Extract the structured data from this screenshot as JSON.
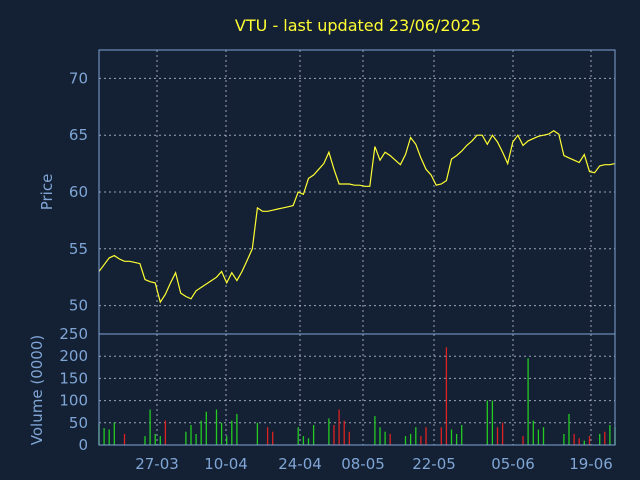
{
  "chart_data": {
    "type": "line",
    "title": "VTU - last updated 23/06/2025",
    "colors": {
      "background": "#142033",
      "axis": "#7fa6d6",
      "price_line": "#ffff33",
      "volume_up": "#22cc22",
      "volume_down": "#dd2222",
      "title": "#ffff33"
    },
    "x_tick_labels": [
      "27-03",
      "10-04",
      "24-04",
      "08-05",
      "22-05",
      "05-06",
      "19-06"
    ],
    "price_panel": {
      "ylabel": "Price",
      "ylim": [
        47.5,
        72.5
      ],
      "yticks": [
        50,
        55,
        60,
        65,
        70
      ],
      "grid": true,
      "values": [
        53.0,
        53.6,
        54.2,
        54.4,
        54.1,
        53.9,
        53.9,
        53.8,
        53.7,
        52.3,
        52.1,
        52.0,
        50.3,
        51.0,
        52.0,
        52.9,
        51.1,
        50.8,
        50.6,
        51.3,
        51.6,
        51.9,
        52.2,
        52.5,
        53.0,
        52.0,
        52.9,
        52.2,
        53.0,
        54.0,
        55.0,
        58.6,
        58.3,
        58.3,
        58.4,
        58.5,
        58.6,
        58.7,
        58.8,
        60.0,
        59.8,
        61.2,
        61.5,
        62.0,
        62.5,
        63.5,
        62.0,
        60.7,
        60.7,
        60.7,
        60.6,
        60.6,
        60.5,
        60.5,
        64.0,
        62.8,
        63.5,
        63.2,
        62.8,
        62.4,
        63.3,
        64.8,
        64.2,
        63.0,
        62.0,
        61.5,
        60.6,
        60.7,
        61.0,
        62.9,
        63.2,
        63.6,
        64.1,
        64.5,
        65.0,
        65.0,
        64.2,
        65.0,
        64.4,
        63.5,
        62.5,
        64.4,
        65.0,
        64.1,
        64.5,
        64.7,
        64.9,
        65.0,
        65.1,
        65.4,
        65.1,
        63.2,
        63.0,
        62.8,
        62.6,
        63.3,
        61.8,
        61.7,
        62.3,
        62.4,
        62.4,
        62.5
      ]
    },
    "volume_panel": {
      "ylabel": "Volume (0000)",
      "ylim": [
        0,
        250
      ],
      "yticks": [
        0,
        50,
        100,
        150,
        200,
        250
      ],
      "grid": true,
      "values": [
        48,
        38,
        35,
        50,
        0,
        25,
        0,
        0,
        0,
        20,
        80,
        25,
        20,
        55,
        0,
        0,
        0,
        30,
        45,
        25,
        55,
        75,
        0,
        80,
        50,
        20,
        55,
        70,
        0,
        0,
        0,
        50,
        0,
        40,
        30,
        0,
        0,
        0,
        0,
        40,
        20,
        15,
        45,
        0,
        0,
        60,
        45,
        80,
        55,
        30,
        0,
        0,
        0,
        0,
        65,
        40,
        30,
        25,
        0,
        0,
        20,
        25,
        40,
        20,
        40,
        0,
        0,
        40,
        220,
        35,
        25,
        45,
        0,
        0,
        0,
        0,
        100,
        100,
        40,
        50,
        0,
        0,
        0,
        20,
        195,
        55,
        35,
        40,
        0,
        0,
        0,
        25,
        70,
        25,
        15,
        10,
        20,
        0,
        25,
        30,
        45,
        40
      ],
      "direction": [
        "up",
        "up",
        "up",
        "up",
        "up",
        "down",
        "up",
        "up",
        "up",
        "up",
        "up",
        "up",
        "up",
        "down",
        "up",
        "up",
        "up",
        "up",
        "up",
        "up",
        "up",
        "up",
        "up",
        "up",
        "up",
        "up",
        "up",
        "up",
        "up",
        "up",
        "up",
        "up",
        "up",
        "down",
        "down",
        "up",
        "up",
        "up",
        "up",
        "up",
        "up",
        "up",
        "up",
        "up",
        "up",
        "up",
        "down",
        "down",
        "down",
        "down",
        "up",
        "up",
        "up",
        "up",
        "up",
        "up",
        "up",
        "down",
        "up",
        "up",
        "up",
        "up",
        "up",
        "down",
        "down",
        "up",
        "up",
        "down",
        "down",
        "up",
        "up",
        "up",
        "up",
        "up",
        "up",
        "up",
        "up",
        "up",
        "down",
        "down",
        "up",
        "up",
        "up",
        "down",
        "up",
        "up",
        "up",
        "up",
        "up",
        "up",
        "up",
        "up",
        "up",
        "down",
        "down",
        "up",
        "down",
        "up",
        "up",
        "down",
        "up",
        "up"
      ]
    }
  }
}
